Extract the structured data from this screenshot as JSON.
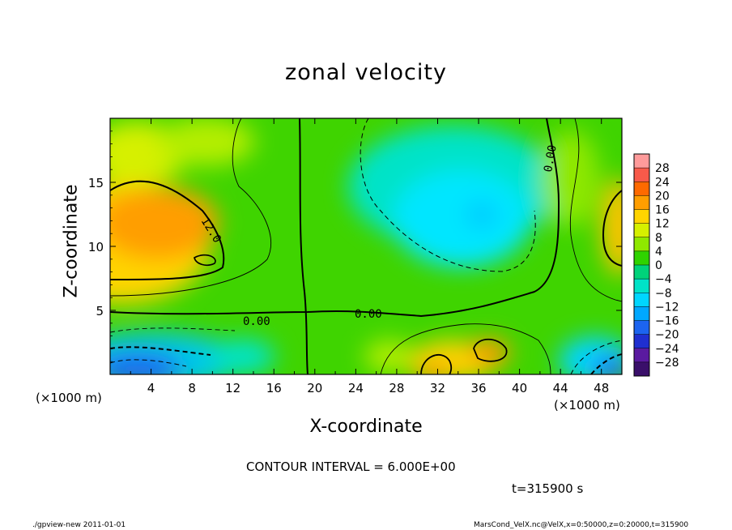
{
  "chart_data": {
    "type": "heatmap",
    "title": "zonal velocity",
    "xlabel": "X-coordinate",
    "ylabel": "Z-coordinate",
    "x_unit": "(×1000 m)",
    "xlim": [
      0,
      50
    ],
    "ylim": [
      0,
      20
    ],
    "x_ticks": [
      4,
      8,
      12,
      16,
      20,
      24,
      28,
      32,
      36,
      40,
      44,
      48
    ],
    "y_ticks": [
      5,
      10,
      15
    ],
    "colorbar_levels": [
      28,
      24,
      20,
      16,
      12,
      8,
      4,
      0,
      -4,
      -8,
      -12,
      -16,
      -20,
      -24,
      -28
    ],
    "colorbar_colors": [
      "#ff9b9b",
      "#f85a4a",
      "#ff6a00",
      "#ff9e00",
      "#ffd400",
      "#d6f000",
      "#8fe800",
      "#2fd300",
      "#00d37a",
      "#00e3c8",
      "#00d6ff",
      "#00a8ff",
      "#1c64f0",
      "#1f2fd0",
      "#5a1aa0",
      "#3a0f6a"
    ],
    "contour_labels": [
      "12.0",
      "0.00",
      "0.00",
      "0.00"
    ],
    "contour_interval": "CONTOUR INTERVAL = 6.000E+00"
  },
  "time_label": "t=315900 s",
  "footer": {
    "left": "./gpview-new  2011-01-01",
    "right": "MarsCond_VelX.nc@VelX,x=0:50000,z=0:20000,t=315900"
  }
}
